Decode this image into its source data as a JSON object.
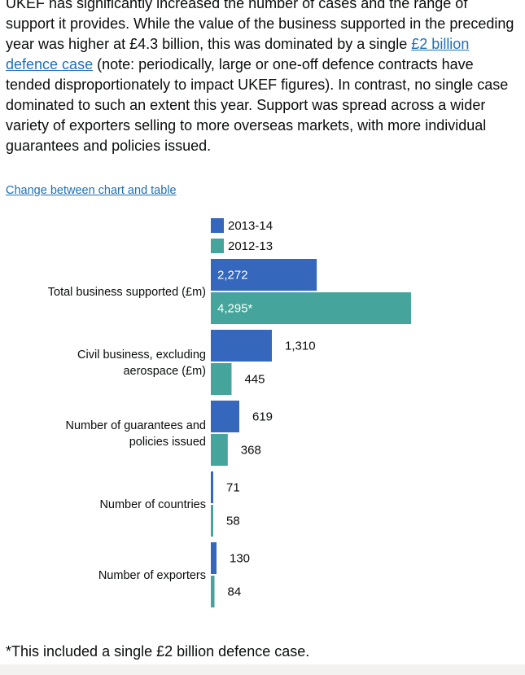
{
  "intro": {
    "text_before_link": "UKEF has significantly increased the number of cases and the range of support it provides. While the value of the business supported in the preceding year was higher at £4.3 billion, this was dominated by a single ",
    "link_text": "£2 billion defence case",
    "text_after_link": " (note: periodically, large or one-off defence contracts have tended disproportionately to impact UKEF figures). In contrast, no single case dominated to such an extent this year. Support was spread across a wider variety of exporters selling to more overseas markets, with more individual guarantees and policies issued."
  },
  "toggle_link": "Change between chart and table",
  "footnote": "*This included a single £2 billion defence case.",
  "chart_data": {
    "type": "bar",
    "orientation": "horizontal",
    "legend_position": "top",
    "categories": [
      "Total business supported (£m)",
      "Civil business, excluding aerospace (£m)",
      "Number of guarantees and policies issued",
      "Number of countries",
      "Number of exporters"
    ],
    "category_lines": [
      [
        "Total business supported (£m)"
      ],
      [
        "Civil business, excluding",
        "aerospace (£m)"
      ],
      [
        "Number of guarantees and",
        "policies issued"
      ],
      [
        "Number of countries"
      ],
      [
        "Number of exporters"
      ]
    ],
    "series": [
      {
        "name": "2013-14",
        "color": "#3567bd",
        "values": [
          2272,
          1310,
          619,
          71,
          130
        ],
        "labels": [
          "2,272",
          "1,310",
          "619",
          "71",
          "130"
        ]
      },
      {
        "name": "2012-13",
        "color": "#45a49b",
        "values": [
          4295,
          445,
          368,
          58,
          84
        ],
        "labels": [
          "4,295*",
          "445",
          "368",
          "58",
          "84"
        ]
      }
    ]
  }
}
